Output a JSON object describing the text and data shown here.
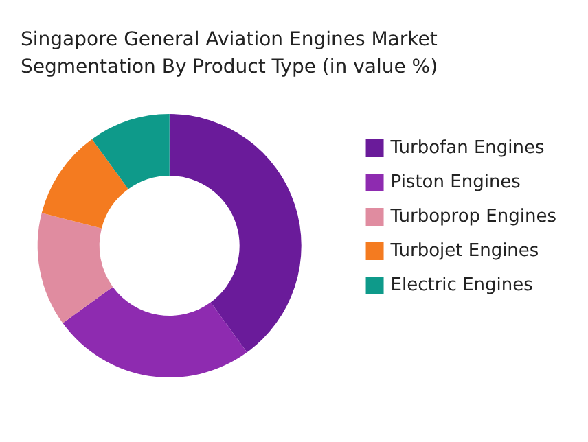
{
  "chart_data": {
    "type": "donut",
    "title": "Singapore General Aviation Engines Market\nSegmentation By Product Type (in value %)",
    "categories": [
      "Turbofan Engines",
      "Piston Engines",
      "Turboprop Engines",
      "Turbojet Engines",
      "Electric Engines"
    ],
    "values": [
      40,
      25,
      14,
      11,
      10
    ],
    "colors": [
      "#6a1b9a",
      "#8e2bb0",
      "#e08ca0",
      "#f47b20",
      "#0e9a8a"
    ],
    "legend": "right"
  }
}
